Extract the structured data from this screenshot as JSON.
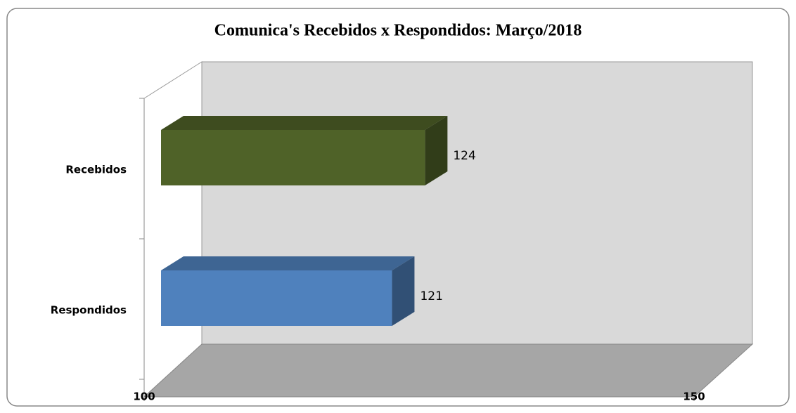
{
  "chart_data": {
    "type": "bar3d_horizontal",
    "title": "Comunica's Recebidos x Respondidos:  Março/2018",
    "categories": [
      "Recebidos",
      "Respondidos"
    ],
    "values": [
      124,
      121
    ],
    "colors": [
      "#4f6228",
      "#4f81bd"
    ],
    "xlim": [
      100,
      150
    ],
    "xticks": [
      100,
      150
    ]
  }
}
